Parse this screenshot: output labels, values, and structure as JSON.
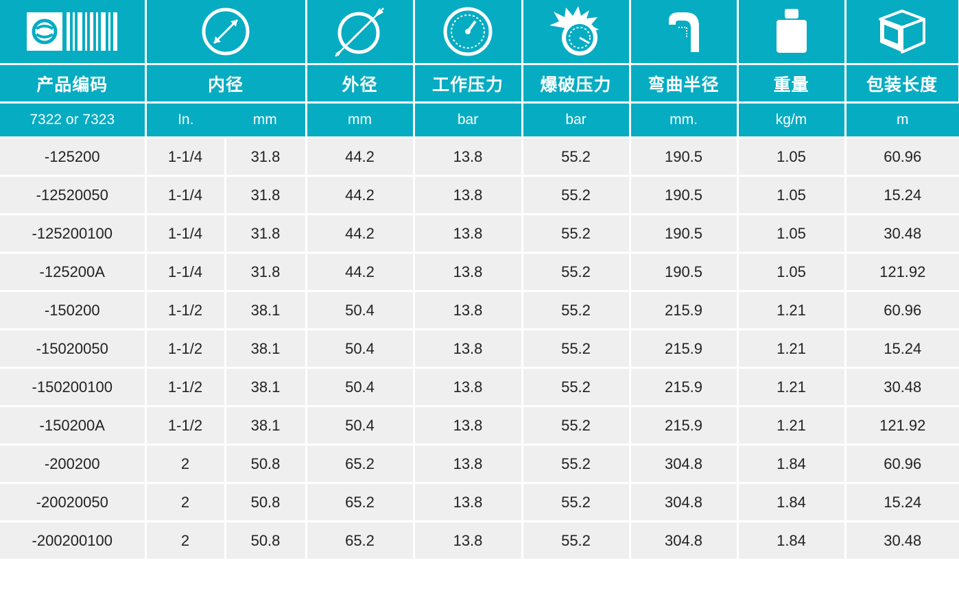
{
  "colors": {
    "header": "#06acc2",
    "row": "#efefef",
    "text": "#222222"
  },
  "icons": [
    "logo-barcode",
    "inner-diameter",
    "outer-diameter",
    "working-pressure-gauge",
    "burst-pressure-gauge",
    "bend-radius",
    "weight",
    "package-box"
  ],
  "headers": {
    "code": "产品编码",
    "inner_dia": "内径",
    "outer_dia": "外径",
    "working_pressure": "工作压力",
    "burst_pressure": "爆破压力",
    "bend_radius": "弯曲半径",
    "weight": "重量",
    "package_length": "包装长度"
  },
  "units": {
    "code": "7322 or 7323",
    "inner_in": "In.",
    "inner_mm": "mm",
    "outer": "mm",
    "working": "bar",
    "burst": "bar",
    "bend": "mm.",
    "weight": "kg/m",
    "length": "m"
  },
  "rows": [
    {
      "code": "-125200",
      "in": "1-1/4",
      "id_mm": "31.8",
      "od_mm": "44.2",
      "wp": "13.8",
      "bp": "55.2",
      "br": "190.5",
      "wt": "1.05",
      "len": "60.96"
    },
    {
      "code": "-12520050",
      "in": "1-1/4",
      "id_mm": "31.8",
      "od_mm": "44.2",
      "wp": "13.8",
      "bp": "55.2",
      "br": "190.5",
      "wt": "1.05",
      "len": "15.24"
    },
    {
      "code": "-125200100",
      "in": "1-1/4",
      "id_mm": "31.8",
      "od_mm": "44.2",
      "wp": "13.8",
      "bp": "55.2",
      "br": "190.5",
      "wt": "1.05",
      "len": "30.48"
    },
    {
      "code": "-125200A",
      "in": "1-1/4",
      "id_mm": "31.8",
      "od_mm": "44.2",
      "wp": "13.8",
      "bp": "55.2",
      "br": "190.5",
      "wt": "1.05",
      "len": "121.92"
    },
    {
      "code": "-150200",
      "in": "1-1/2",
      "id_mm": "38.1",
      "od_mm": "50.4",
      "wp": "13.8",
      "bp": "55.2",
      "br": "215.9",
      "wt": "1.21",
      "len": "60.96"
    },
    {
      "code": "-15020050",
      "in": "1-1/2",
      "id_mm": "38.1",
      "od_mm": "50.4",
      "wp": "13.8",
      "bp": "55.2",
      "br": "215.9",
      "wt": "1.21",
      "len": "15.24"
    },
    {
      "code": "-150200100",
      "in": "1-1/2",
      "id_mm": "38.1",
      "od_mm": "50.4",
      "wp": "13.8",
      "bp": "55.2",
      "br": "215.9",
      "wt": "1.21",
      "len": "30.48"
    },
    {
      "code": "-150200A",
      "in": "1-1/2",
      "id_mm": "38.1",
      "od_mm": "50.4",
      "wp": "13.8",
      "bp": "55.2",
      "br": "215.9",
      "wt": "1.21",
      "len": "121.92"
    },
    {
      "code": "-200200",
      "in": "2",
      "id_mm": "50.8",
      "od_mm": "65.2",
      "wp": "13.8",
      "bp": "55.2",
      "br": "304.8",
      "wt": "1.84",
      "len": "60.96"
    },
    {
      "code": "-20020050",
      "in": "2",
      "id_mm": "50.8",
      "od_mm": "65.2",
      "wp": "13.8",
      "bp": "55.2",
      "br": "304.8",
      "wt": "1.84",
      "len": "15.24"
    },
    {
      "code": "-200200100",
      "in": "2",
      "id_mm": "50.8",
      "od_mm": "65.2",
      "wp": "13.8",
      "bp": "55.2",
      "br": "304.8",
      "wt": "1.84",
      "len": "30.48"
    }
  ]
}
